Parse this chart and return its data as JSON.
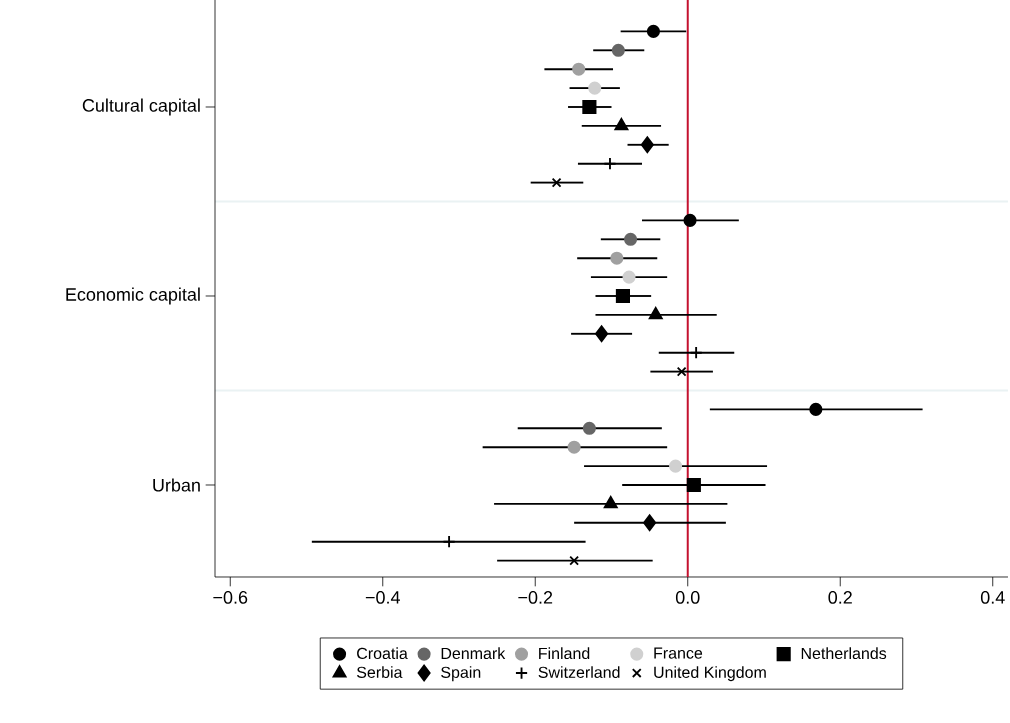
{
  "chart_data": {
    "type": "scatter",
    "orientation": "horizontal",
    "categories": [
      "Cultural capital",
      "Economic capital",
      "Urban"
    ],
    "xlim": [
      -0.62,
      0.42
    ],
    "xticks": [
      {
        "value": -0.6,
        "label": "−0.6"
      },
      {
        "value": -0.4,
        "label": "−0.4"
      },
      {
        "value": -0.2,
        "label": "−0.2"
      },
      {
        "value": 0.0,
        "label": "0.0"
      },
      {
        "value": 0.2,
        "label": "0.2"
      },
      {
        "value": 0.4,
        "label": "0.4"
      }
    ],
    "grid": "y",
    "legend": "bottom",
    "ref_lines": [
      {
        "axis": "x",
        "value": 0,
        "color": "#c4122f"
      }
    ],
    "series": [
      {
        "name": "Croatia",
        "color": "#000000",
        "marker": "circle",
        "values": [
          -0.045,
          0.003,
          0.168
        ],
        "errors": [
          [
            -0.088,
            -0.002
          ],
          [
            -0.06,
            0.067
          ],
          [
            0.029,
            0.308
          ]
        ]
      },
      {
        "name": "Denmark",
        "color": "#666666",
        "marker": "circle",
        "values": [
          -0.091,
          -0.075,
          -0.129
        ],
        "errors": [
          [
            -0.124,
            -0.057
          ],
          [
            -0.114,
            -0.036
          ],
          [
            -0.223,
            -0.034
          ]
        ]
      },
      {
        "name": "Finland",
        "color": "#a0a0a0",
        "marker": "circle",
        "values": [
          -0.143,
          -0.093,
          -0.149
        ],
        "errors": [
          [
            -0.188,
            -0.098
          ],
          [
            -0.145,
            -0.04
          ],
          [
            -0.269,
            -0.027
          ]
        ]
      },
      {
        "name": "France",
        "color": "#d0d0d0",
        "marker": "circle",
        "values": [
          -0.122,
          -0.077,
          -0.016
        ],
        "errors": [
          [
            -0.155,
            -0.089
          ],
          [
            -0.127,
            -0.027
          ],
          [
            -0.136,
            0.104
          ]
        ]
      },
      {
        "name": "Netherlands",
        "color": "#000000",
        "marker": "square",
        "values": [
          -0.129,
          -0.085,
          0.008
        ],
        "errors": [
          [
            -0.157,
            -0.1
          ],
          [
            -0.121,
            -0.048
          ],
          [
            -0.086,
            0.102
          ]
        ]
      },
      {
        "name": "Serbia",
        "color": "#000000",
        "marker": "triangle",
        "values": [
          -0.087,
          -0.042,
          -0.101
        ],
        "errors": [
          [
            -0.139,
            -0.035
          ],
          [
            -0.121,
            0.038
          ],
          [
            -0.254,
            0.052
          ]
        ]
      },
      {
        "name": "Spain",
        "color": "#000000",
        "marker": "diamond",
        "values": [
          -0.053,
          -0.113,
          -0.05
        ],
        "errors": [
          [
            -0.079,
            -0.025
          ],
          [
            -0.153,
            -0.073
          ],
          [
            -0.149,
            0.05
          ]
        ]
      },
      {
        "name": "Switzerland",
        "color": "#000000",
        "marker": "plus",
        "values": [
          -0.102,
          0.011,
          -0.313
        ],
        "errors": [
          [
            -0.144,
            -0.06
          ],
          [
            -0.038,
            0.061
          ],
          [
            -0.493,
            -0.134
          ]
        ]
      },
      {
        "name": "United Kingdom",
        "color": "#000000",
        "marker": "cross",
        "values": [
          -0.172,
          -0.008,
          -0.149
        ],
        "errors": [
          [
            -0.206,
            -0.137
          ],
          [
            -0.049,
            0.033
          ],
          [
            -0.25,
            -0.046
          ]
        ]
      }
    ]
  }
}
